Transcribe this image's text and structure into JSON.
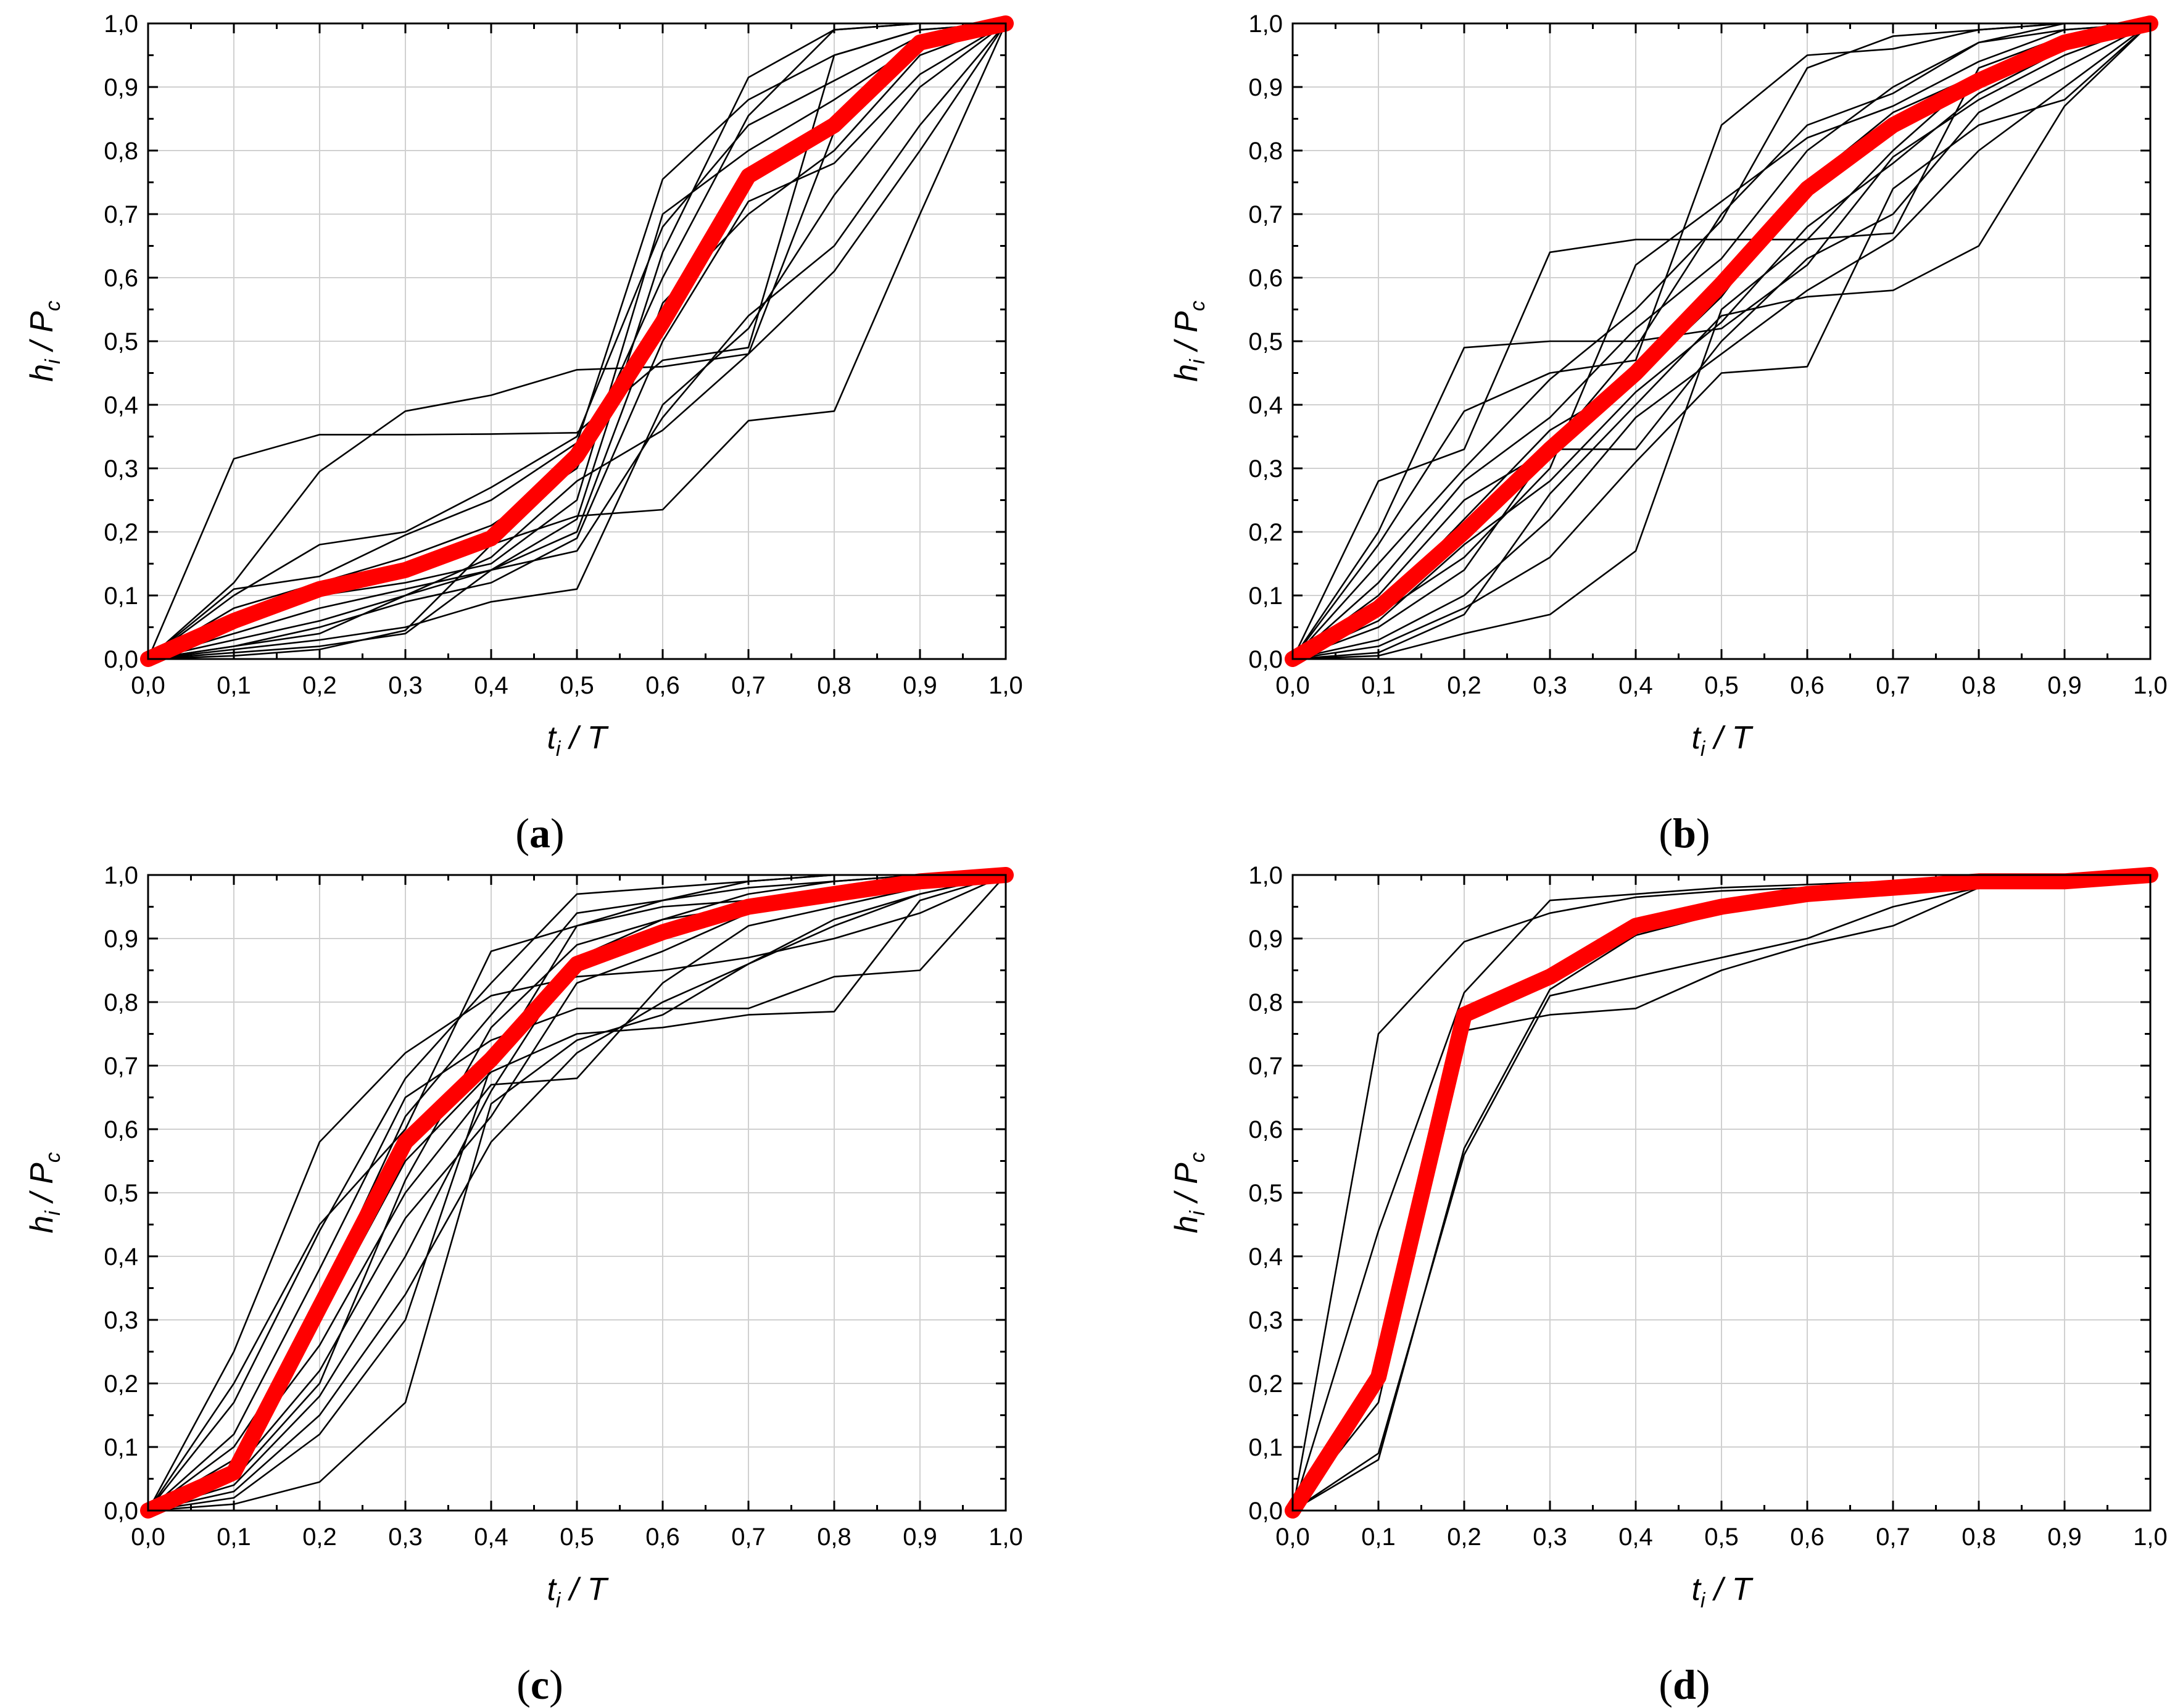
{
  "figure": {
    "panels": [
      "a",
      "b",
      "c",
      "d"
    ],
    "axis_ticks": [
      "0,0",
      "0,1",
      "0,2",
      "0,3",
      "0,4",
      "0,5",
      "0,6",
      "0,7",
      "0,8",
      "0,9",
      "1,0"
    ],
    "xlabel": {
      "main": "t",
      "sub": "i",
      "rest": " / T"
    },
    "ylabel": {
      "main": "h",
      "sub": "i",
      "mid": " / P",
      "sub2": "c"
    },
    "colors": {
      "individual": "#000000",
      "mean": "#ff0000",
      "grid": "#d0d0d0"
    }
  },
  "chart_data": [
    {
      "type": "line",
      "panel": "(a)",
      "caption": {
        "open": "(",
        "letter": "a",
        "close": ")"
      },
      "xlabel": "ti / T",
      "ylabel": "hi / Pc",
      "xlim": [
        0,
        1
      ],
      "ylim": [
        0,
        1
      ],
      "x": [
        0,
        0.1,
        0.2,
        0.3,
        0.4,
        0.5,
        0.6,
        0.7,
        0.8,
        0.9,
        1.0
      ],
      "mean": [
        0,
        0.06,
        0.11,
        0.14,
        0.19,
        0.32,
        0.53,
        0.76,
        0.84,
        0.97,
        1.0
      ],
      "series": [
        [
          0,
          0.315,
          0.353,
          0.353,
          0.354,
          0.356,
          0.47,
          0.49,
          0.95,
          0.99,
          1.0
        ],
        [
          0,
          0.12,
          0.295,
          0.39,
          0.415,
          0.455,
          0.46,
          0.48,
          0.83,
          0.96,
          1.0
        ],
        [
          0,
          0.11,
          0.13,
          0.195,
          0.25,
          0.34,
          0.755,
          0.88,
          0.95,
          0.99,
          1.0
        ],
        [
          0,
          0.1,
          0.18,
          0.2,
          0.27,
          0.35,
          0.68,
          0.84,
          0.91,
          0.98,
          1.0
        ],
        [
          0,
          0.08,
          0.12,
          0.16,
          0.21,
          0.3,
          0.6,
          0.855,
          0.99,
          1.0,
          1.0
        ],
        [
          0,
          0.06,
          0.1,
          0.12,
          0.15,
          0.25,
          0.7,
          0.8,
          0.88,
          0.97,
          1.0
        ],
        [
          0,
          0.04,
          0.08,
          0.11,
          0.14,
          0.22,
          0.64,
          0.915,
          0.99,
          1.0,
          1.0
        ],
        [
          0,
          0.03,
          0.06,
          0.1,
          0.14,
          0.2,
          0.56,
          0.7,
          0.8,
          0.95,
          1.0
        ],
        [
          0,
          0.02,
          0.05,
          0.09,
          0.12,
          0.19,
          0.5,
          0.72,
          0.78,
          0.92,
          1.0
        ],
        [
          0,
          0.015,
          0.03,
          0.05,
          0.09,
          0.11,
          0.4,
          0.52,
          0.73,
          0.9,
          1.0
        ],
        [
          0,
          0.01,
          0.02,
          0.04,
          0.14,
          0.17,
          0.38,
          0.54,
          0.65,
          0.84,
          1.0
        ],
        [
          0,
          0.005,
          0.015,
          0.045,
          0.18,
          0.225,
          0.235,
          0.375,
          0.39,
          0.7,
          1.0
        ],
        [
          0,
          0.02,
          0.04,
          0.1,
          0.16,
          0.28,
          0.36,
          0.48,
          0.61,
          0.8,
          1.0
        ]
      ]
    },
    {
      "type": "line",
      "panel": "(b)",
      "caption": {
        "open": "(",
        "letter": "b",
        "close": ")"
      },
      "xlabel": "ti / T",
      "ylabel": "hi / Pc",
      "xlim": [
        0,
        1
      ],
      "ylim": [
        0,
        1
      ],
      "x": [
        0,
        0.1,
        0.2,
        0.3,
        0.4,
        0.5,
        0.6,
        0.7,
        0.8,
        0.9,
        1.0
      ],
      "mean": [
        0,
        0.08,
        0.2,
        0.33,
        0.45,
        0.59,
        0.74,
        0.84,
        0.91,
        0.97,
        1.0
      ],
      "series": [
        [
          0,
          0.28,
          0.33,
          0.64,
          0.66,
          0.66,
          0.66,
          0.67,
          0.93,
          0.98,
          1.0
        ],
        [
          0,
          0.2,
          0.49,
          0.5,
          0.5,
          0.52,
          0.62,
          0.79,
          0.88,
          0.95,
          1.0
        ],
        [
          0,
          0.18,
          0.39,
          0.45,
          0.47,
          0.84,
          0.95,
          0.96,
          0.99,
          1.0,
          1.0
        ],
        [
          0,
          0.15,
          0.3,
          0.44,
          0.55,
          0.69,
          0.93,
          0.98,
          0.99,
          1.0,
          1.0
        ],
        [
          0,
          0.12,
          0.28,
          0.38,
          0.52,
          0.63,
          0.8,
          0.9,
          0.97,
          1.0,
          1.0
        ],
        [
          0,
          0.1,
          0.25,
          0.33,
          0.49,
          0.7,
          0.84,
          0.89,
          0.97,
          0.99,
          1.0
        ],
        [
          0,
          0.08,
          0.22,
          0.36,
          0.44,
          0.57,
          0.75,
          0.86,
          0.92,
          0.97,
          1.0
        ],
        [
          0,
          0.07,
          0.16,
          0.3,
          0.62,
          0.72,
          0.82,
          0.87,
          0.94,
          0.99,
          1.0
        ],
        [
          0,
          0.05,
          0.14,
          0.33,
          0.33,
          0.5,
          0.63,
          0.7,
          0.86,
          0.93,
          1.0
        ],
        [
          0,
          0.03,
          0.1,
          0.22,
          0.38,
          0.48,
          0.58,
          0.66,
          0.8,
          0.9,
          1.0
        ],
        [
          0,
          0.02,
          0.08,
          0.16,
          0.31,
          0.45,
          0.46,
          0.74,
          0.84,
          0.88,
          1.0
        ],
        [
          0,
          0.01,
          0.07,
          0.26,
          0.4,
          0.54,
          0.57,
          0.58,
          0.65,
          0.87,
          1.0
        ],
        [
          0,
          0.005,
          0.04,
          0.07,
          0.17,
          0.55,
          0.66,
          0.8,
          0.92,
          0.96,
          1.0
        ],
        [
          0,
          0.06,
          0.18,
          0.28,
          0.42,
          0.53,
          0.68,
          0.78,
          0.89,
          0.96,
          1.0
        ]
      ]
    },
    {
      "type": "line",
      "panel": "(c)",
      "caption": {
        "open": "(",
        "letter": "c",
        "close": ")"
      },
      "xlabel": "ti / T",
      "ylabel": "hi / Pc",
      "xlim": [
        0,
        1
      ],
      "ylim": [
        0,
        1
      ],
      "x": [
        0,
        0.1,
        0.2,
        0.3,
        0.4,
        0.5,
        0.6,
        0.7,
        0.8,
        0.9,
        1.0
      ],
      "mean": [
        0,
        0.06,
        0.32,
        0.58,
        0.71,
        0.86,
        0.91,
        0.95,
        0.97,
        0.99,
        1.0
      ],
      "series": [
        [
          0,
          0.25,
          0.58,
          0.72,
          0.81,
          0.84,
          0.85,
          0.87,
          0.9,
          0.94,
          1.0
        ],
        [
          0,
          0.2,
          0.45,
          0.6,
          0.88,
          0.92,
          0.95,
          0.96,
          0.98,
          0.99,
          1.0
        ],
        [
          0,
          0.17,
          0.44,
          0.68,
          0.83,
          0.97,
          0.98,
          0.99,
          1.0,
          1.0,
          1.0
        ],
        [
          0,
          0.12,
          0.38,
          0.65,
          0.74,
          0.79,
          0.79,
          0.79,
          0.84,
          0.85,
          1.0
        ],
        [
          0,
          0.1,
          0.3,
          0.55,
          0.69,
          0.75,
          0.76,
          0.78,
          0.785,
          0.96,
          1.0
        ],
        [
          0,
          0.08,
          0.26,
          0.5,
          0.67,
          0.68,
          0.83,
          0.92,
          0.95,
          0.98,
          1.0
        ],
        [
          0,
          0.06,
          0.22,
          0.46,
          0.62,
          0.83,
          0.88,
          0.94,
          0.96,
          0.99,
          1.0
        ],
        [
          0,
          0.04,
          0.18,
          0.4,
          0.66,
          0.87,
          0.93,
          0.97,
          0.99,
          1.0,
          1.0
        ],
        [
          0,
          0.03,
          0.15,
          0.34,
          0.58,
          0.72,
          0.8,
          0.86,
          0.92,
          0.97,
          1.0
        ],
        [
          0,
          0.02,
          0.12,
          0.3,
          0.7,
          0.92,
          0.96,
          0.98,
          0.99,
          1.0,
          1.0
        ],
        [
          0,
          0.01,
          0.045,
          0.17,
          0.64,
          0.74,
          0.78,
          0.86,
          0.93,
          0.97,
          1.0
        ],
        [
          0,
          0.05,
          0.2,
          0.52,
          0.76,
          0.89,
          0.93,
          0.95,
          0.97,
          0.98,
          1.0
        ],
        [
          0,
          0.07,
          0.33,
          0.62,
          0.78,
          0.94,
          0.96,
          0.99,
          1.0,
          1.0,
          1.0
        ]
      ]
    },
    {
      "type": "line",
      "panel": "(d)",
      "caption": {
        "open": "(",
        "letter": "d",
        "close": ")"
      },
      "xlabel": "ti / T",
      "ylabel": "hi / Pc",
      "xlim": [
        0,
        1
      ],
      "ylim": [
        0,
        1
      ],
      "x": [
        0,
        0.1,
        0.2,
        0.3,
        0.4,
        0.5,
        0.6,
        0.7,
        0.8,
        0.9,
        1.0
      ],
      "mean": [
        0,
        0.21,
        0.78,
        0.84,
        0.92,
        0.95,
        0.97,
        0.98,
        0.99,
        0.99,
        1.0
      ],
      "series": [
        [
          0,
          0.75,
          0.895,
          0.94,
          0.965,
          0.975,
          0.98,
          0.985,
          0.99,
          0.995,
          1.0
        ],
        [
          0,
          0.44,
          0.815,
          0.96,
          0.97,
          0.98,
          0.985,
          0.99,
          0.99,
          0.995,
          1.0
        ],
        [
          0,
          0.17,
          0.755,
          0.78,
          0.79,
          0.85,
          0.89,
          0.92,
          0.98,
          0.99,
          1.0
        ],
        [
          0,
          0.09,
          0.56,
          0.81,
          0.84,
          0.87,
          0.9,
          0.95,
          0.98,
          0.99,
          1.0
        ],
        [
          0,
          0.08,
          0.57,
          0.82,
          0.905,
          0.94,
          0.96,
          0.98,
          0.99,
          1.0,
          1.0
        ]
      ]
    }
  ]
}
